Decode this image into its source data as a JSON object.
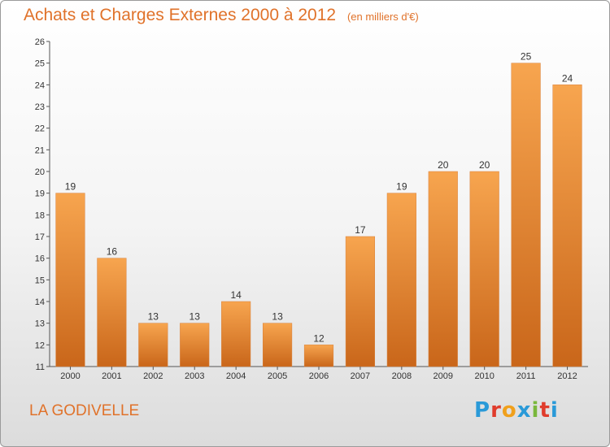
{
  "chart_data": {
    "type": "bar",
    "title": "Achats et Charges Externes 2000 à 2012",
    "subtitle": "(en milliers d'€)",
    "categories": [
      "2000",
      "2001",
      "2002",
      "2003",
      "2004",
      "2005",
      "2006",
      "2007",
      "2008",
      "2009",
      "2010",
      "2011",
      "2012"
    ],
    "values": [
      19,
      16,
      13,
      13,
      14,
      13,
      12,
      17,
      19,
      20,
      20,
      25,
      24
    ],
    "ylim": [
      11,
      26
    ],
    "yticks": [
      "11",
      "12",
      "13",
      "14",
      "15",
      "16",
      "17",
      "18",
      "19",
      "20",
      "21",
      "22",
      "23",
      "24",
      "25",
      "26"
    ],
    "ytick_values": [
      11,
      12,
      13,
      14,
      15,
      16,
      17,
      18,
      19,
      20,
      21,
      22,
      23,
      24,
      25,
      26
    ],
    "grid": false,
    "bar_color_top": "#f7a54f",
    "bar_color_bottom": "#c9661a"
  },
  "footer": {
    "location": "LA GODIVELLE",
    "logo_letters": [
      "P",
      "r",
      "o",
      "x",
      "i",
      "t",
      "i"
    ],
    "logo_colors": [
      "#2a9ad8",
      "#e03c2c",
      "#f0a01c",
      "#2a9ad8",
      "#7ab83c",
      "#e03c2c",
      "#2a9ad8"
    ]
  },
  "colors": {
    "accent": "#e0722a",
    "axis": "#555555"
  }
}
